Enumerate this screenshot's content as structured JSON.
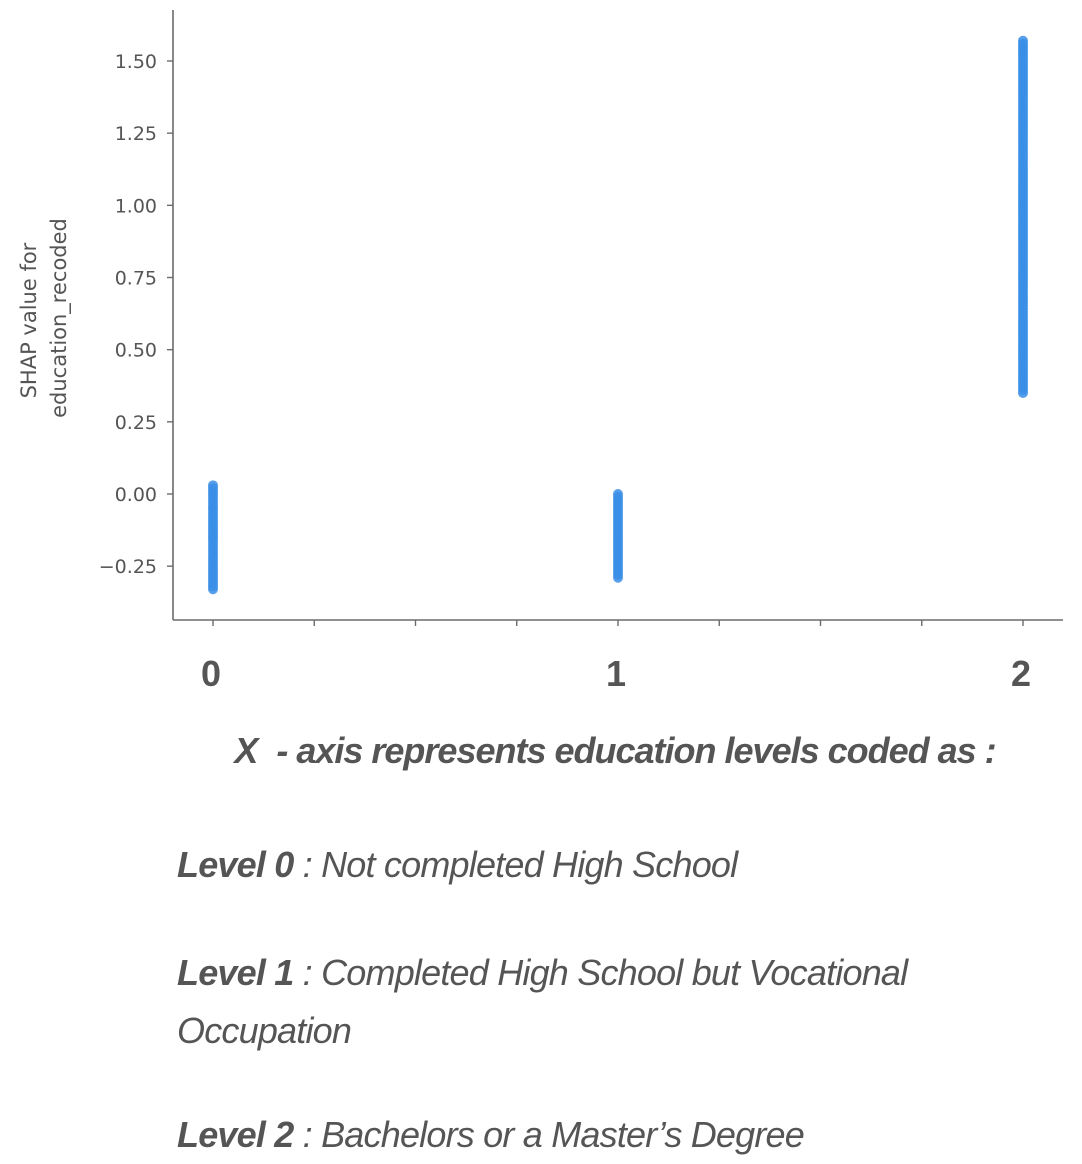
{
  "chart_data": {
    "type": "scatter",
    "title": "",
    "xlabel": "",
    "ylabel_lines": [
      "SHAP value for",
      "education_recoded"
    ],
    "x_ticks": [
      "0",
      "1",
      "2"
    ],
    "y_ticks": [
      "1.50",
      "1.25",
      "1.00",
      "0.75",
      "0.50",
      "0.25",
      "0.00",
      "−0.25"
    ],
    "ylim": [
      -0.42,
      1.68
    ],
    "xlim": [
      -0.1,
      2.1
    ],
    "grid": false,
    "point_color": "#3a8ee6",
    "series": [
      {
        "points": [
          {
            "x": 0,
            "y_min": -0.33,
            "y_max": 0.03
          },
          {
            "x": 1,
            "y_min": -0.29,
            "y_max": 0.0
          },
          {
            "x": 2,
            "y_min": 0.35,
            "y_max": 1.57
          }
        ]
      }
    ]
  },
  "legend": {
    "title_x": "X",
    "title_rest": " - axis represents education levels coded as :",
    "levels": [
      {
        "label": "Level 0",
        "separator": " : ",
        "text": "Not completed High School"
      },
      {
        "label": "Level 1",
        "separator": " :  ",
        "text": "Completed High School but Vocational Occupation"
      },
      {
        "label": "Level 2",
        "separator": " : ",
        "text": "Bachelors or a Master’s Degree"
      }
    ]
  }
}
